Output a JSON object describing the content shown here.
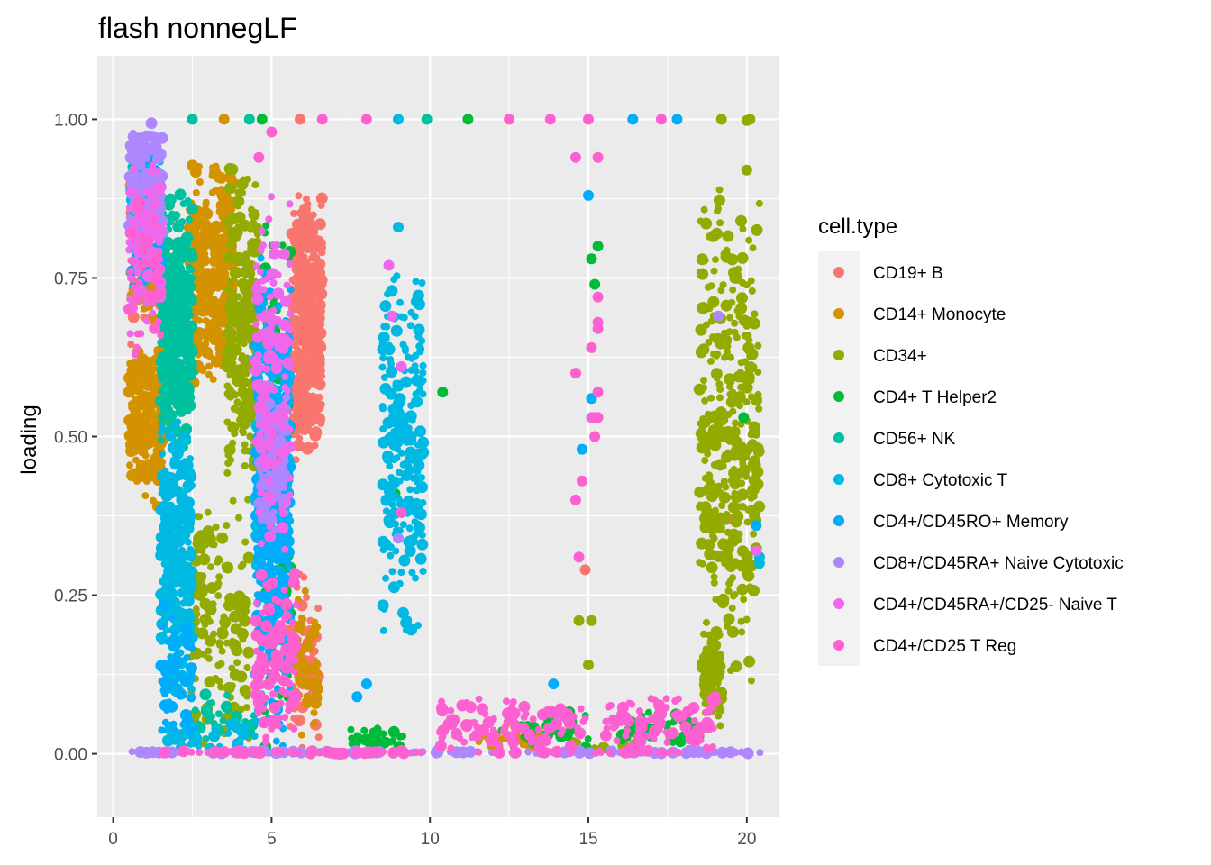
{
  "chart_data": {
    "type": "scatter",
    "title": "flash nonnegLF",
    "xlabel": "",
    "ylabel": "loading",
    "xlim": [
      -0.5,
      21.0
    ],
    "ylim": [
      -0.1,
      1.1
    ],
    "x_ticks": [
      0,
      5,
      10,
      15,
      20
    ],
    "x_tick_labels": [
      "0",
      "5",
      "10",
      "15",
      "20"
    ],
    "y_ticks": [
      0.0,
      0.25,
      0.5,
      0.75,
      1.0
    ],
    "y_tick_labels": [
      "0.00",
      "0.25",
      "0.50",
      "0.75",
      "1.00"
    ],
    "grid": true,
    "legend_title": "cell.type",
    "legend_position": "right",
    "series": [
      {
        "name": "CD19+ B",
        "color": "#F8766D",
        "clusters": [
          {
            "x": [
              5.6,
              6.6
            ],
            "y": [
              0.45,
              0.9
            ],
            "n": 450
          },
          {
            "x": [
              5.4,
              6.5
            ],
            "y": [
              0.0,
              0.3
            ],
            "n": 70
          },
          {
            "x": [
              0.5,
              1.5
            ],
            "y": [
              0.6,
              1.0
            ],
            "n": 40
          }
        ],
        "points": [
          [
            5.9,
            1.0
          ],
          [
            14.9,
            0.29
          ],
          [
            19.5,
            0.37
          ]
        ]
      },
      {
        "name": "CD14+ Monocyte",
        "color": "#D39200",
        "clusters": [
          {
            "x": [
              0.5,
              1.6
            ],
            "y": [
              0.38,
              0.65
            ],
            "n": 220
          },
          {
            "x": [
              2.4,
              3.8
            ],
            "y": [
              0.55,
              0.95
            ],
            "n": 320
          },
          {
            "x": [
              0.5,
              1.4
            ],
            "y": [
              0.65,
              0.85
            ],
            "n": 40
          },
          {
            "x": [
              5.8,
              6.5
            ],
            "y": [
              0.0,
              0.27
            ],
            "n": 50
          },
          {
            "x": [
              11.5,
              13.5
            ],
            "y": [
              0.0,
              0.05
            ],
            "n": 25
          }
        ],
        "points": [
          [
            3.5,
            1.0
          ],
          [
            1.4,
            0.39
          ]
        ]
      },
      {
        "name": "CD34+",
        "color": "#93AA00",
        "clusters": [
          {
            "x": [
              3.6,
              4.6
            ],
            "y": [
              0.4,
              0.95
            ],
            "n": 230
          },
          {
            "x": [
              2.4,
              4.3
            ],
            "y": [
              0.0,
              0.42
            ],
            "n": 140
          },
          {
            "x": [
              18.5,
              20.4
            ],
            "y": [
              0.1,
              0.9
            ],
            "n": 380
          },
          {
            "x": [
              18.6,
              19.2
            ],
            "y": [
              0.04,
              0.2
            ],
            "n": 90
          },
          {
            "x": [
              14.0,
              16.5
            ],
            "y": [
              0.0,
              0.02
            ],
            "n": 10
          }
        ],
        "points": [
          [
            19.2,
            1.0
          ],
          [
            20.0,
            0.998
          ],
          [
            20.1,
            1.0
          ],
          [
            20.0,
            0.92
          ],
          [
            14.7,
            0.21
          ],
          [
            15.1,
            0.21
          ],
          [
            15.0,
            0.14
          ]
        ]
      },
      {
        "name": "CD4+ T Helper2",
        "color": "#00BA38",
        "clusters": [
          {
            "x": [
              4.7,
              5.6
            ],
            "y": [
              0.0,
              0.9
            ],
            "n": 110
          },
          {
            "x": [
              7.5,
              9.2
            ],
            "y": [
              0.0,
              0.05
            ],
            "n": 35
          },
          {
            "x": [
              12.0,
              15.0
            ],
            "y": [
              0.0,
              0.07
            ],
            "n": 35
          },
          {
            "x": [
              16.0,
              18.5
            ],
            "y": [
              0.0,
              0.08
            ],
            "n": 35
          }
        ],
        "points": [
          [
            4.7,
            1.0
          ],
          [
            11.2,
            1.0
          ],
          [
            10.4,
            0.57
          ],
          [
            15.3,
            0.8
          ],
          [
            15.1,
            0.78
          ],
          [
            15.2,
            0.74
          ],
          [
            19.9,
            0.53
          ],
          [
            8.9,
            0.41
          ]
        ]
      },
      {
        "name": "CD56+ NK",
        "color": "#00C19F",
        "clusters": [
          {
            "x": [
              1.5,
              2.5
            ],
            "y": [
              0.45,
              0.9
            ],
            "n": 420
          },
          {
            "x": [
              0.5,
              1.5
            ],
            "y": [
              0.8,
              0.95
            ],
            "n": 30
          },
          {
            "x": [
              2.5,
              4.5
            ],
            "y": [
              0.0,
              0.1
            ],
            "n": 30
          }
        ],
        "points": [
          [
            2.5,
            1.0
          ],
          [
            4.3,
            1.0
          ],
          [
            9.9,
            1.0
          ]
        ]
      },
      {
        "name": "CD8+ Cytotoxic T",
        "color": "#00B9E3",
        "clusters": [
          {
            "x": [
              1.5,
              2.5
            ],
            "y": [
              0.07,
              0.55
            ],
            "n": 280
          },
          {
            "x": [
              8.5,
              9.8
            ],
            "y": [
              0.18,
              0.8
            ],
            "n": 230
          },
          {
            "x": [
              0.5,
              1.5
            ],
            "y": [
              0.85,
              0.98
            ],
            "n": 60
          },
          {
            "x": [
              4.5,
              5.6
            ],
            "y": [
              0.2,
              0.7
            ],
            "n": 120
          },
          {
            "x": [
              1.5,
              4.5
            ],
            "y": [
              0.0,
              0.05
            ],
            "n": 40
          }
        ],
        "points": [
          [
            9.0,
            1.0
          ],
          [
            9.0,
            0.83
          ],
          [
            20.4,
            0.31
          ],
          [
            20.4,
            0.3
          ]
        ]
      },
      {
        "name": "CD4+/CD45RO+ Memory",
        "color": "#00ADFA",
        "clusters": [
          {
            "x": [
              4.5,
              5.6
            ],
            "y": [
              0.0,
              0.8
            ],
            "n": 420
          },
          {
            "x": [
              0.5,
              1.5
            ],
            "y": [
              0.7,
              0.99
            ],
            "n": 60
          },
          {
            "x": [
              1.5,
              2.5
            ],
            "y": [
              0.0,
              0.25
            ],
            "n": 60
          }
        ],
        "points": [
          [
            16.4,
            1.0
          ],
          [
            17.8,
            1.0
          ],
          [
            15.0,
            0.88
          ],
          [
            15.1,
            0.56
          ],
          [
            14.8,
            0.48
          ],
          [
            20.3,
            0.36
          ],
          [
            13.9,
            0.11
          ],
          [
            8.0,
            0.11
          ],
          [
            7.7,
            0.09
          ]
        ]
      },
      {
        "name": "CD8+/CD45RA+ Naive Cytotoxic",
        "color": "#AE87FF",
        "clusters": [
          {
            "x": [
              0.5,
              1.6
            ],
            "y": [
              0.8,
              1.0
            ],
            "n": 150
          },
          {
            "x": [
              4.6,
              5.5
            ],
            "y": [
              0.35,
              0.6
            ],
            "n": 120
          },
          {
            "x": [
              0.5,
              20.5
            ],
            "y": [
              0.0,
              0.005
            ],
            "n": 160
          }
        ],
        "points": [
          [
            19.1,
            0.69
          ],
          [
            9.0,
            0.34
          ]
        ]
      },
      {
        "name": "CD4+/CD45RA+/CD25- Naive T",
        "color": "#EF67EB",
        "clusters": [
          {
            "x": [
              0.5,
              1.5
            ],
            "y": [
              0.65,
              0.95
            ],
            "n": 100
          },
          {
            "x": [
              4.5,
              5.6
            ],
            "y": [
              0.3,
              0.9
            ],
            "n": 140
          }
        ],
        "points": [
          [
            8.7,
            0.77
          ],
          [
            8.8,
            0.69
          ],
          [
            9.1,
            0.61
          ],
          [
            20.3,
            0.32
          ],
          [
            15.1,
            0.53
          ]
        ]
      },
      {
        "name": "CD4+/CD25 T Reg",
        "color": "#FD61D1",
        "clusters": [
          {
            "x": [
              4.5,
              5.8
            ],
            "y": [
              0.0,
              0.3
            ],
            "n": 130
          },
          {
            "x": [
              10.3,
              15.0
            ],
            "y": [
              0.0,
              0.09
            ],
            "n": 110
          },
          {
            "x": [
              15.5,
              19.0
            ],
            "y": [
              0.0,
              0.1
            ],
            "n": 100
          },
          {
            "x": [
              0.5,
              1.5
            ],
            "y": [
              0.6,
              0.9
            ],
            "n": 40
          },
          {
            "x": [
              1.5,
              18.0
            ],
            "y": [
              0.0,
              0.005
            ],
            "n": 90
          }
        ],
        "points": [
          [
            6.6,
            1.0
          ],
          [
            8.0,
            1.0
          ],
          [
            12.5,
            1.0
          ],
          [
            13.8,
            1.0
          ],
          [
            15.0,
            1.0
          ],
          [
            17.3,
            1.0
          ],
          [
            5.0,
            0.98
          ],
          [
            14.6,
            0.94
          ],
          [
            15.3,
            0.94
          ],
          [
            15.3,
            0.72
          ],
          [
            15.3,
            0.68
          ],
          [
            15.3,
            0.67
          ],
          [
            15.1,
            0.64
          ],
          [
            14.6,
            0.6
          ],
          [
            15.3,
            0.57
          ],
          [
            15.2,
            0.53
          ],
          [
            15.3,
            0.53
          ],
          [
            15.2,
            0.5
          ],
          [
            14.8,
            0.43
          ],
          [
            14.6,
            0.4
          ],
          [
            14.7,
            0.31
          ],
          [
            4.6,
            0.94
          ],
          [
            9.1,
            0.38
          ],
          [
            19.0,
            0.09
          ]
        ]
      }
    ]
  }
}
